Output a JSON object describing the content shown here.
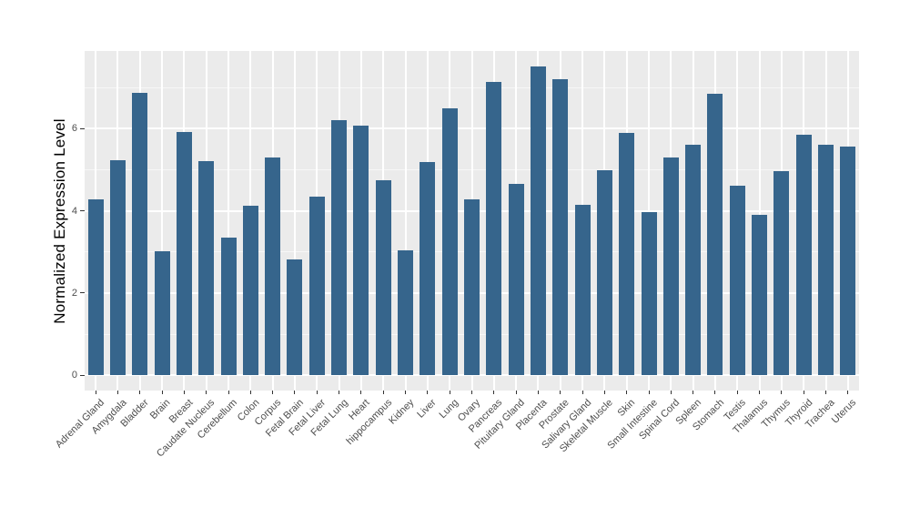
{
  "chart_data": {
    "type": "bar",
    "title": "",
    "xlabel": "",
    "ylabel": "Normalized Expression Level",
    "categories": [
      "Adrenal Gland",
      "Amygdala",
      "Bladder",
      "Brain",
      "Breast",
      "Caudate Nucleus",
      "Cerebellum",
      "Colon",
      "Corpus",
      "Fetal Brain",
      "Fetal Liver",
      "Fetal Lung",
      "Heart",
      "hippocampus",
      "Kidney",
      "Liver",
      "Lung",
      "Ovary",
      "Pancreas",
      "Pituitary Gland",
      "Placenta",
      "Prostate",
      "Salivary Gland",
      "Skeletal Muscle",
      "Skin",
      "Small Intestine",
      "Spinal Cord",
      "Spleen",
      "Stomach",
      "Testis",
      "Thalamus",
      "Thymus",
      "Thyroid",
      "Trachea",
      "Uterus"
    ],
    "values": [
      4.28,
      5.24,
      6.87,
      3.02,
      5.91,
      5.21,
      3.36,
      4.12,
      5.3,
      2.82,
      4.34,
      6.21,
      6.07,
      4.74,
      3.05,
      5.18,
      6.49,
      4.27,
      7.14,
      4.65,
      7.51,
      7.21,
      4.15,
      4.99,
      5.9,
      3.96,
      5.3,
      5.6,
      6.86,
      4.62,
      3.9,
      4.97,
      5.86,
      5.6,
      5.56
    ],
    "yticks": [
      0,
      2,
      4,
      6
    ],
    "minor_yticks": [
      1,
      3,
      5,
      7
    ],
    "ylim": [
      -0.37,
      7.89
    ],
    "grid": true,
    "legend": false,
    "colors": {
      "bar": "#36658C",
      "panel_background": "#EBEBEB",
      "gridline": "#FFFFFF",
      "tick_label": "#4D4D4D",
      "axis_title": "#000000",
      "tick_mark": "#333333"
    }
  }
}
